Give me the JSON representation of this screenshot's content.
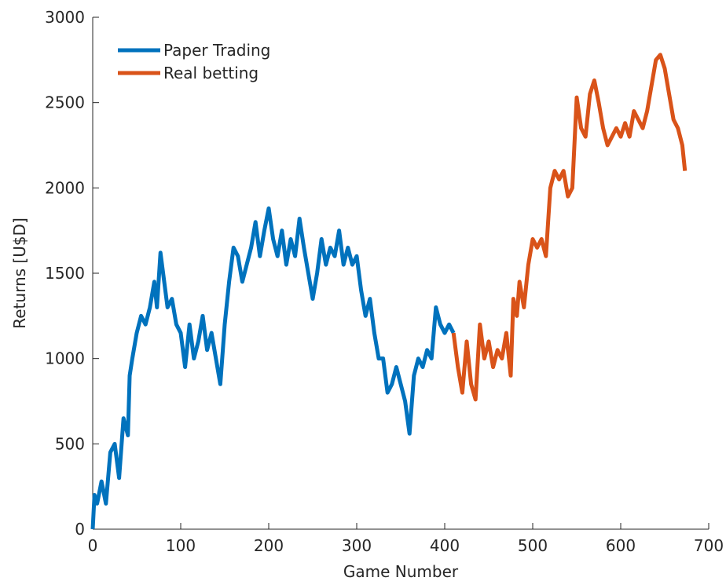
{
  "chart_data": {
    "type": "line",
    "xlabel": "Game Number",
    "ylabel": "Returns [U$D]",
    "xlim": [
      0,
      700
    ],
    "xticks": [
      0,
      100,
      200,
      300,
      400,
      500,
      600,
      700
    ],
    "ylim": [
      0,
      3000
    ],
    "yticks": [
      0,
      500,
      1000,
      1500,
      2000,
      2500,
      3000
    ],
    "legend": "top-left",
    "series": [
      {
        "name": "Paper Trading",
        "color": "#0072bd",
        "x": [
          0,
          2,
          5,
          10,
          15,
          20,
          25,
          30,
          35,
          40,
          42,
          45,
          50,
          55,
          60,
          65,
          70,
          73,
          77,
          80,
          85,
          90,
          95,
          100,
          105,
          110,
          115,
          120,
          125,
          130,
          135,
          140,
          145,
          150,
          155,
          160,
          165,
          170,
          175,
          180,
          185,
          190,
          195,
          200,
          205,
          210,
          215,
          220,
          225,
          230,
          235,
          240,
          245,
          250,
          255,
          260,
          265,
          270,
          275,
          280,
          285,
          290,
          295,
          300,
          305,
          310,
          315,
          320,
          325,
          330,
          335,
          340,
          345,
          350,
          355,
          360,
          365,
          370,
          375,
          380,
          385,
          390,
          395,
          400,
          405,
          410
        ],
        "values": [
          0,
          200,
          150,
          280,
          150,
          450,
          500,
          300,
          650,
          550,
          900,
          1000,
          1150,
          1250,
          1200,
          1300,
          1450,
          1300,
          1620,
          1500,
          1300,
          1350,
          1200,
          1150,
          950,
          1200,
          1000,
          1100,
          1250,
          1050,
          1150,
          1000,
          850,
          1200,
          1450,
          1650,
          1600,
          1450,
          1550,
          1650,
          1800,
          1600,
          1750,
          1880,
          1700,
          1600,
          1750,
          1550,
          1700,
          1600,
          1820,
          1650,
          1500,
          1350,
          1500,
          1700,
          1550,
          1650,
          1600,
          1750,
          1550,
          1650,
          1550,
          1600,
          1400,
          1250,
          1350,
          1150,
          1000,
          1000,
          800,
          850,
          950,
          850,
          750,
          560,
          900,
          1000,
          950,
          1050,
          1000,
          1300,
          1200,
          1150,
          1200,
          1150
        ]
      },
      {
        "name": "Real betting",
        "color": "#d95319",
        "x": [
          410,
          415,
          420,
          425,
          430,
          435,
          440,
          445,
          450,
          455,
          460,
          465,
          470,
          475,
          478,
          482,
          485,
          490,
          495,
          500,
          505,
          510,
          515,
          520,
          525,
          530,
          535,
          540,
          545,
          550,
          555,
          560,
          565,
          570,
          575,
          580,
          585,
          590,
          595,
          600,
          605,
          610,
          615,
          620,
          625,
          630,
          635,
          640,
          645,
          650,
          655,
          660,
          665,
          670,
          673
        ],
        "values": [
          1150,
          950,
          800,
          1100,
          850,
          760,
          1200,
          1000,
          1100,
          950,
          1050,
          1000,
          1150,
          900,
          1350,
          1250,
          1450,
          1300,
          1550,
          1700,
          1650,
          1700,
          1600,
          2000,
          2100,
          2050,
          2100,
          1950,
          2000,
          2530,
          2350,
          2300,
          2550,
          2630,
          2500,
          2350,
          2250,
          2300,
          2350,
          2300,
          2380,
          2300,
          2450,
          2400,
          2350,
          2450,
          2600,
          2750,
          2780,
          2700,
          2550,
          2400,
          2350,
          2250,
          2100
        ]
      }
    ]
  }
}
